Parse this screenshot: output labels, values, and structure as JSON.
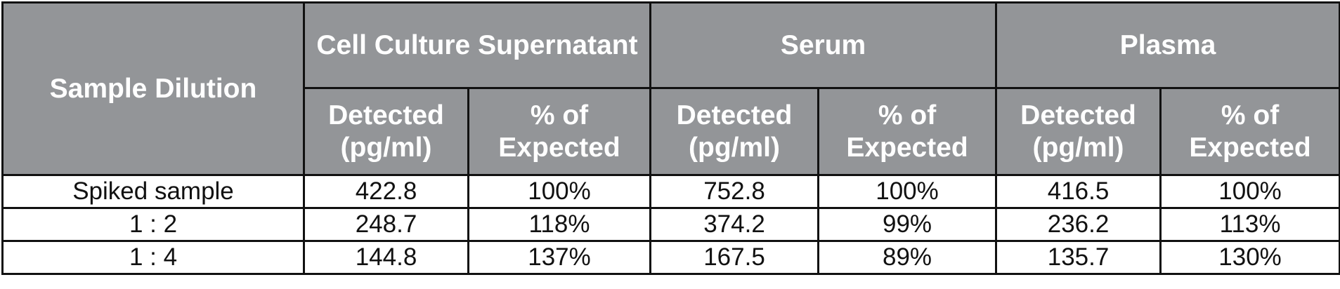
{
  "table": {
    "row_header": "Sample Dilution",
    "groups": [
      "Cell Culture Supernatant",
      "Serum",
      "Plasma"
    ],
    "subheaders": [
      "Detected (pg/ml)",
      "% of Expected"
    ],
    "rows": [
      [
        "Spiked sample",
        "422.8",
        "100%",
        "752.8",
        "100%",
        "416.5",
        "100%"
      ],
      [
        "1 : 2",
        "248.7",
        "118%",
        "374.2",
        "99%",
        "236.2",
        "113%"
      ],
      [
        "1 : 4",
        "144.8",
        "137%",
        "167.5",
        "89%",
        "135.7",
        "130%"
      ]
    ]
  }
}
